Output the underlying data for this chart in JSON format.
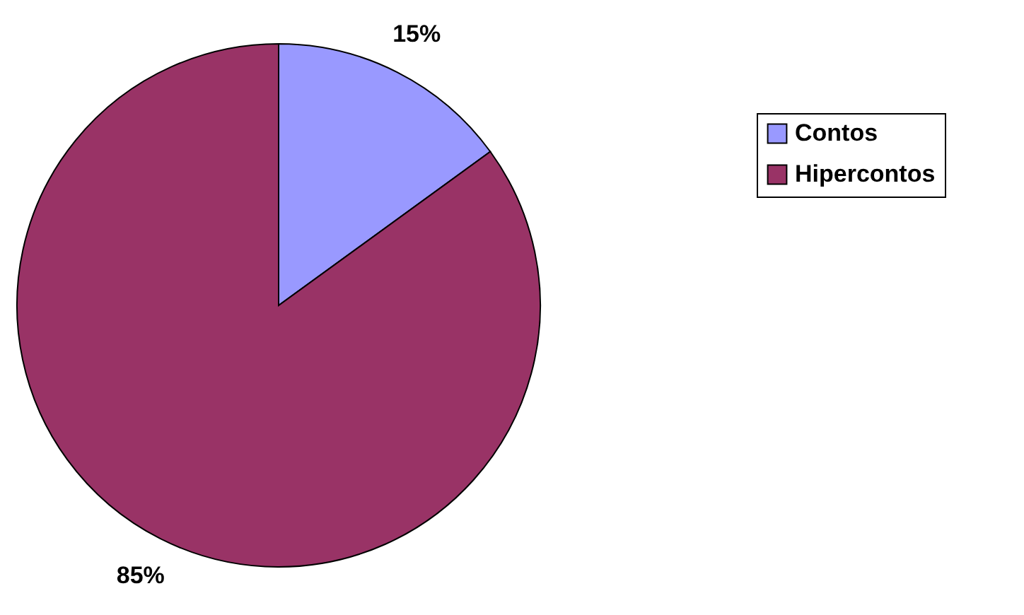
{
  "chart_data": {
    "type": "pie",
    "categories": [
      "Contos",
      "Hipercontos"
    ],
    "values": [
      15,
      85
    ],
    "colors": [
      "#9999ff",
      "#993366"
    ],
    "value_labels": [
      "15%",
      "85%"
    ],
    "legend": "right"
  }
}
